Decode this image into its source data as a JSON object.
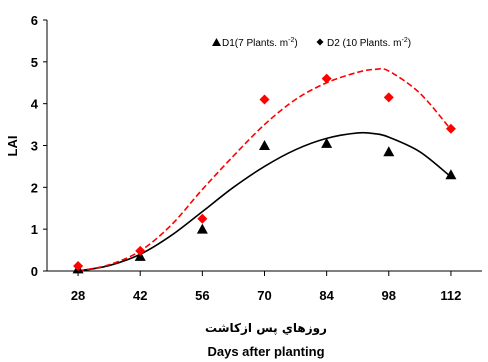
{
  "chart_data": {
    "type": "scatter",
    "x_label": "Days after planting",
    "x_label_fa": "روزهاي پس ازكاشت",
    "y_label": "LAI",
    "x_ticks": [
      28,
      42,
      56,
      70,
      84,
      98,
      112
    ],
    "y_ticks": [
      0,
      1,
      2,
      3,
      4,
      5,
      6
    ],
    "xlim": [
      21,
      119
    ],
    "ylim": [
      0,
      6
    ],
    "grid": false,
    "legend_position": "top-right",
    "series": [
      {
        "name": "D1",
        "legend_label": "D1(7 Plants. m",
        "legend_sup": "-2",
        "legend_close": ")",
        "marker": "triangle",
        "marker_color": "#000000",
        "line_style": "solid",
        "line_color": "#000000",
        "points": [
          [
            28,
            0.05
          ],
          [
            42,
            0.35
          ],
          [
            56,
            1.0
          ],
          [
            70,
            3.0
          ],
          [
            84,
            3.05
          ],
          [
            98,
            2.85
          ],
          [
            112,
            2.3
          ]
        ],
        "fit": [
          [
            28,
            0.0
          ],
          [
            35,
            0.13
          ],
          [
            42,
            0.4
          ],
          [
            49,
            0.85
          ],
          [
            56,
            1.42
          ],
          [
            63,
            2.0
          ],
          [
            70,
            2.5
          ],
          [
            77,
            2.9
          ],
          [
            84,
            3.17
          ],
          [
            91,
            3.3
          ],
          [
            95,
            3.28
          ],
          [
            98,
            3.2
          ],
          [
            105,
            2.85
          ],
          [
            112,
            2.25
          ]
        ]
      },
      {
        "name": "D2",
        "legend_label": "D2 (10 Plants. m",
        "legend_sup": "-2",
        "legend_close": ")",
        "marker": "diamond",
        "marker_color": "#ff0000",
        "line_style": "dashed",
        "line_color": "#ff0000",
        "points": [
          [
            28,
            0.12
          ],
          [
            42,
            0.48
          ],
          [
            56,
            1.25
          ],
          [
            70,
            4.1
          ],
          [
            84,
            4.6
          ],
          [
            98,
            4.15
          ],
          [
            112,
            3.4
          ]
        ],
        "fit": [
          [
            28,
            0.0
          ],
          [
            35,
            0.15
          ],
          [
            42,
            0.48
          ],
          [
            49,
            1.1
          ],
          [
            56,
            1.95
          ],
          [
            63,
            2.75
          ],
          [
            70,
            3.5
          ],
          [
            77,
            4.1
          ],
          [
            84,
            4.5
          ],
          [
            91,
            4.75
          ],
          [
            95,
            4.82
          ],
          [
            98,
            4.78
          ],
          [
            105,
            4.25
          ],
          [
            112,
            3.38
          ]
        ]
      }
    ]
  }
}
